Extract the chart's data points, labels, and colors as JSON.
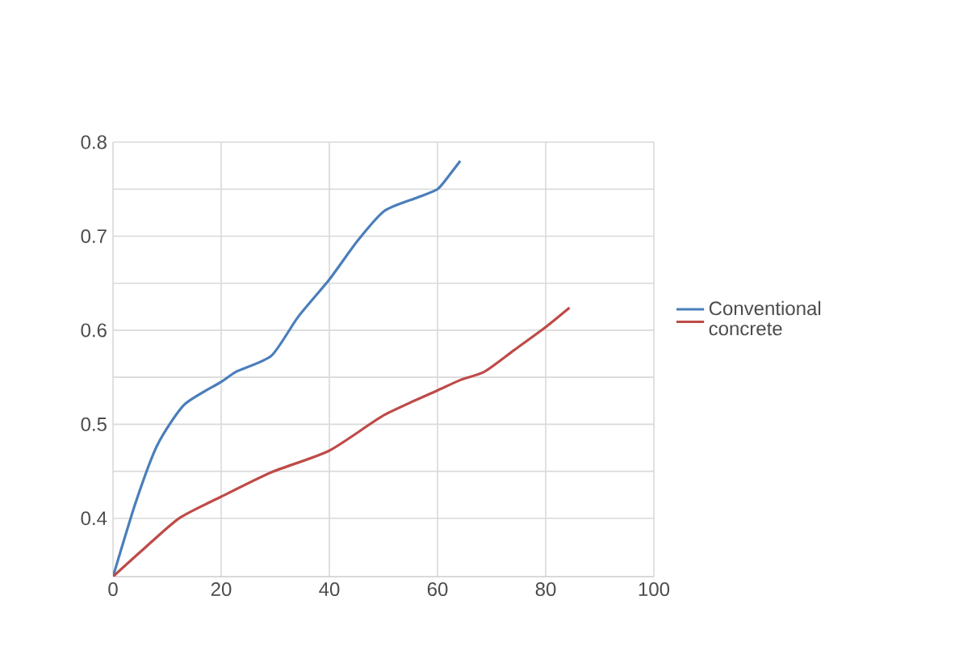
{
  "chart_data": {
    "type": "line",
    "xlim": [
      0,
      100
    ],
    "xticks": [
      0,
      20,
      40,
      60,
      80,
      100
    ],
    "ylim": [
      0.338,
      0.8
    ],
    "yticks": [
      0.4,
      0.5,
      0.6,
      0.7,
      0.8
    ],
    "grid": true,
    "legend": "right",
    "marker": "none",
    "series": [
      {
        "name": "Conventional concrete",
        "color": "#4a7ebb",
        "x": [
          0,
          4.2,
          8.2,
          13.2,
          20,
          22.8,
          29.3,
          34.2,
          40,
          45.2,
          50.2,
          56.2,
          60,
          62.2,
          64.2
        ],
        "values": [
          0.338,
          0.417,
          0.478,
          0.521,
          0.545,
          0.556,
          0.573,
          0.614,
          0.654,
          0.695,
          0.727,
          0.741,
          0.75,
          0.765,
          0.78
        ]
      },
      {
        "color": "#be4b48",
        "x": [
          0,
          5.2,
          12.2,
          20,
          29.3,
          40,
          50.2,
          60,
          64.2,
          68.7,
          74.2,
          79.7,
          84.4
        ],
        "values": [
          0.338,
          0.365,
          0.4,
          0.423,
          0.449,
          0.472,
          0.51,
          0.536,
          0.547,
          0.556,
          0.579,
          0.602,
          0.624
        ]
      }
    ]
  }
}
